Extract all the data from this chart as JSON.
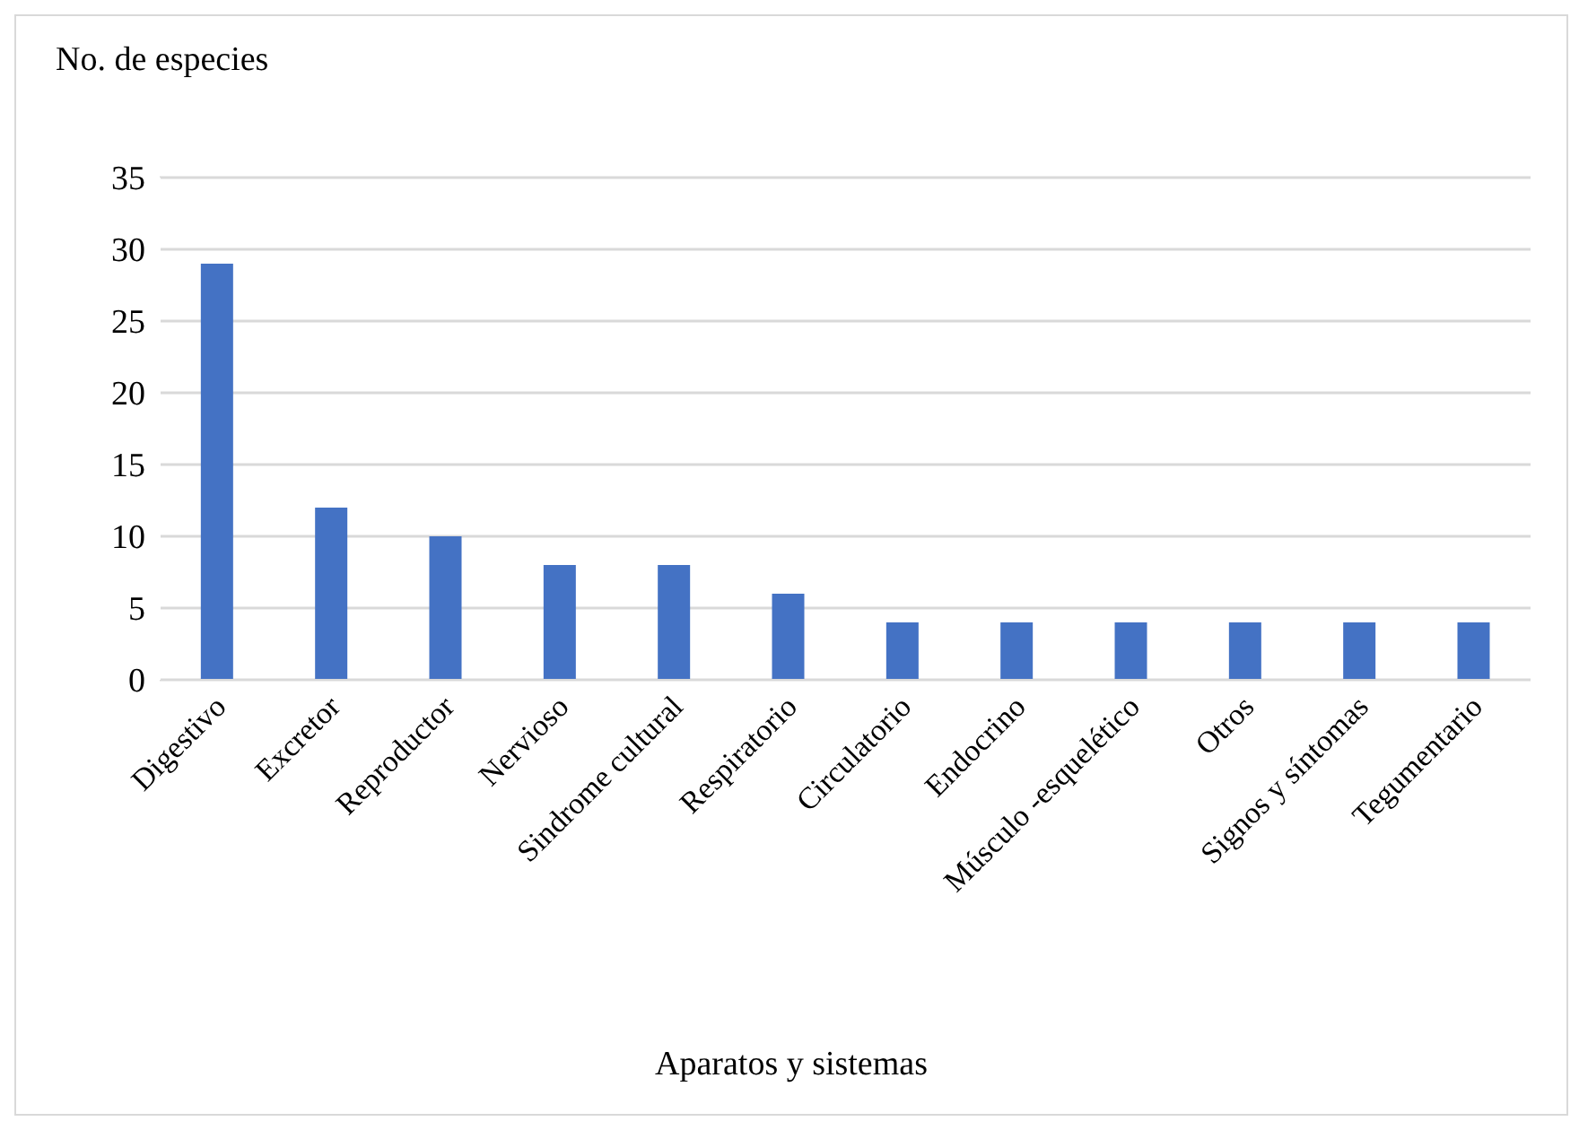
{
  "chart_data": {
    "type": "bar",
    "xlabel": "Aparatos y sistemas",
    "ylabel": "No. de especies",
    "categories": [
      "Digestivo",
      "Excretor",
      "Reproductor",
      "Nervioso",
      "Sindrome cultural",
      "Respiratorio",
      "Circulatorio",
      "Endocrino",
      "Músculo -esquelético",
      "Otros",
      "Signos y síntomas",
      "Tegumentario"
    ],
    "values": [
      29,
      12,
      10,
      8,
      8,
      6,
      4,
      4,
      4,
      4,
      4,
      4
    ],
    "color": "#4472c4",
    "ylim": [
      0,
      35
    ],
    "yticks": [
      0,
      5,
      10,
      15,
      20,
      25,
      30,
      35
    ],
    "grid": "y",
    "legend": false
  }
}
